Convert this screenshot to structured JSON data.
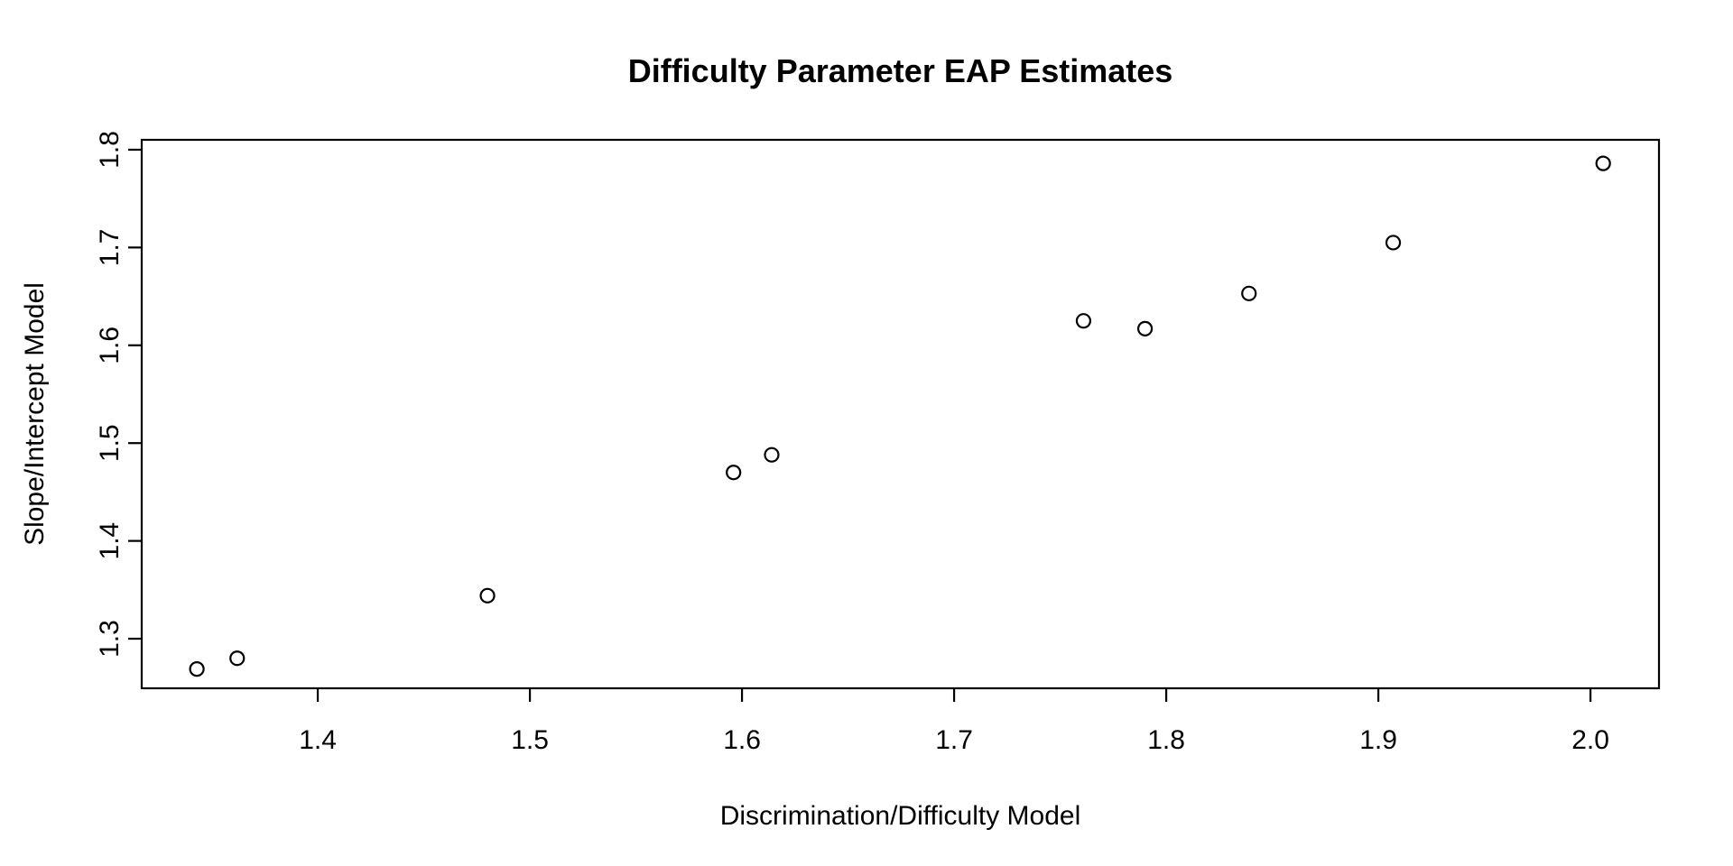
{
  "chart_data": {
    "type": "scatter",
    "title": "Difficulty Parameter EAP Estimates",
    "xlabel": "Discrimination/Difficulty Model",
    "ylabel": "Slope/Intercept Model",
    "points": [
      {
        "x": 1.343,
        "y": 1.269
      },
      {
        "x": 1.362,
        "y": 1.28
      },
      {
        "x": 1.48,
        "y": 1.344
      },
      {
        "x": 1.596,
        "y": 1.47
      },
      {
        "x": 1.614,
        "y": 1.488
      },
      {
        "x": 1.761,
        "y": 1.625
      },
      {
        "x": 1.79,
        "y": 1.617
      },
      {
        "x": 1.839,
        "y": 1.653
      },
      {
        "x": 1.907,
        "y": 1.705
      },
      {
        "x": 2.006,
        "y": 1.786
      }
    ],
    "x_ticks": [
      {
        "value": 1.4,
        "label": "1.4"
      },
      {
        "value": 1.5,
        "label": "1.5"
      },
      {
        "value": 1.6,
        "label": "1.6"
      },
      {
        "value": 1.7,
        "label": "1.7"
      },
      {
        "value": 1.8,
        "label": "1.8"
      },
      {
        "value": 1.9,
        "label": "1.9"
      },
      {
        "value": 2.0,
        "label": "2.0"
      }
    ],
    "y_ticks": [
      {
        "value": 1.3,
        "label": "1.3"
      },
      {
        "value": 1.4,
        "label": "1.4"
      },
      {
        "value": 1.5,
        "label": "1.5"
      },
      {
        "value": 1.6,
        "label": "1.6"
      },
      {
        "value": 1.7,
        "label": "1.7"
      },
      {
        "value": 1.8,
        "label": "1.8"
      }
    ],
    "xlim": [
      1.317,
      2.0323
    ],
    "ylim": [
      1.2493,
      1.8101
    ],
    "grid": false,
    "legend": "none",
    "marker": {
      "shape": "open-circle",
      "radius_px": 7.5,
      "stroke_px": 2.2,
      "color": "#000000"
    },
    "colors": {
      "background": "#ffffff",
      "foreground": "#000000"
    }
  }
}
